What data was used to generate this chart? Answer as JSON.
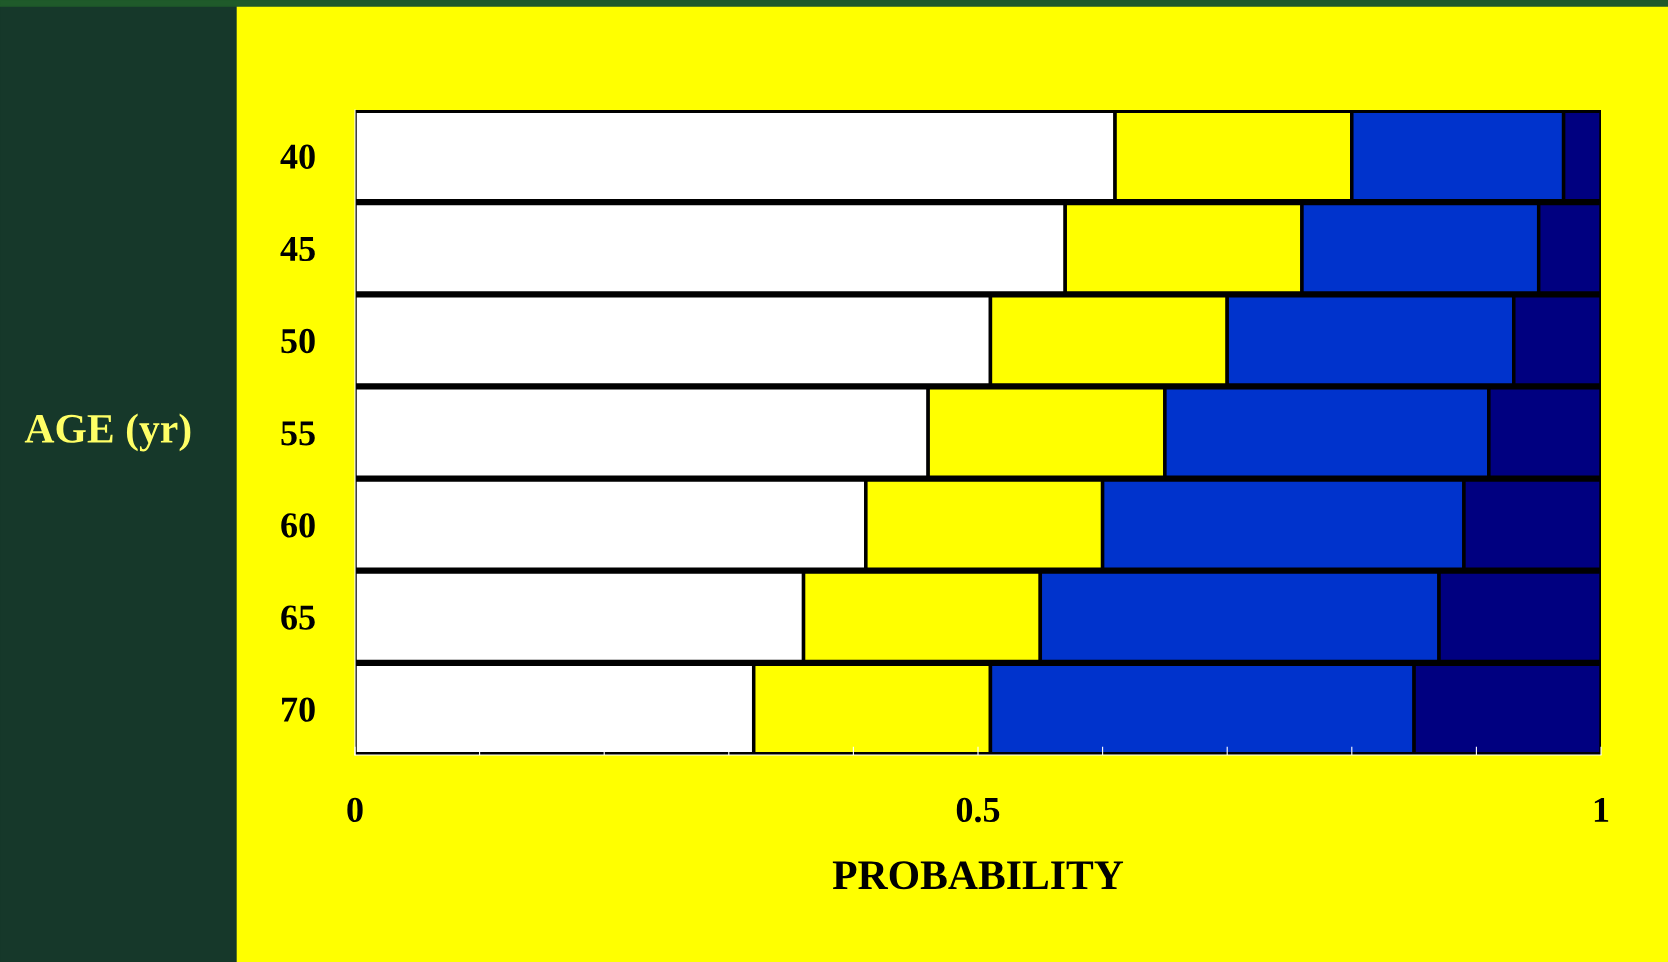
{
  "chart_data": {
    "type": "bar",
    "orientation": "horizontal",
    "stacked": true,
    "xlabel": "PROBABILITY",
    "ylabel": "AGE (yr)",
    "categories": [
      "40",
      "45",
      "50",
      "55",
      "60",
      "65",
      "70"
    ],
    "series": [
      {
        "color": "#ffffff",
        "values": [
          0.61,
          0.57,
          0.51,
          0.46,
          0.41,
          0.36,
          0.32
        ]
      },
      {
        "color": "#ffff00",
        "values": [
          0.19,
          0.19,
          0.19,
          0.19,
          0.19,
          0.19,
          0.19
        ]
      },
      {
        "color": "#0033cc",
        "values": [
          0.17,
          0.19,
          0.23,
          0.26,
          0.29,
          0.32,
          0.34
        ]
      },
      {
        "color": "#000080",
        "values": [
          0.03,
          0.05,
          0.07,
          0.09,
          0.11,
          0.13,
          0.15
        ]
      }
    ],
    "xlim": [
      0,
      1
    ],
    "xticks": [
      0,
      {
        "value": 0.1,
        "label": null
      },
      {
        "value": 0.2,
        "label": null
      },
      {
        "value": 0.3,
        "label": null
      },
      {
        "value": 0.4,
        "label": null
      },
      0.5,
      {
        "value": 0.6,
        "label": null
      },
      {
        "value": 0.7,
        "label": null
      },
      {
        "value": 0.8,
        "label": null
      },
      {
        "value": 0.9,
        "label": null
      },
      1
    ],
    "grid": false,
    "legend": false
  }
}
